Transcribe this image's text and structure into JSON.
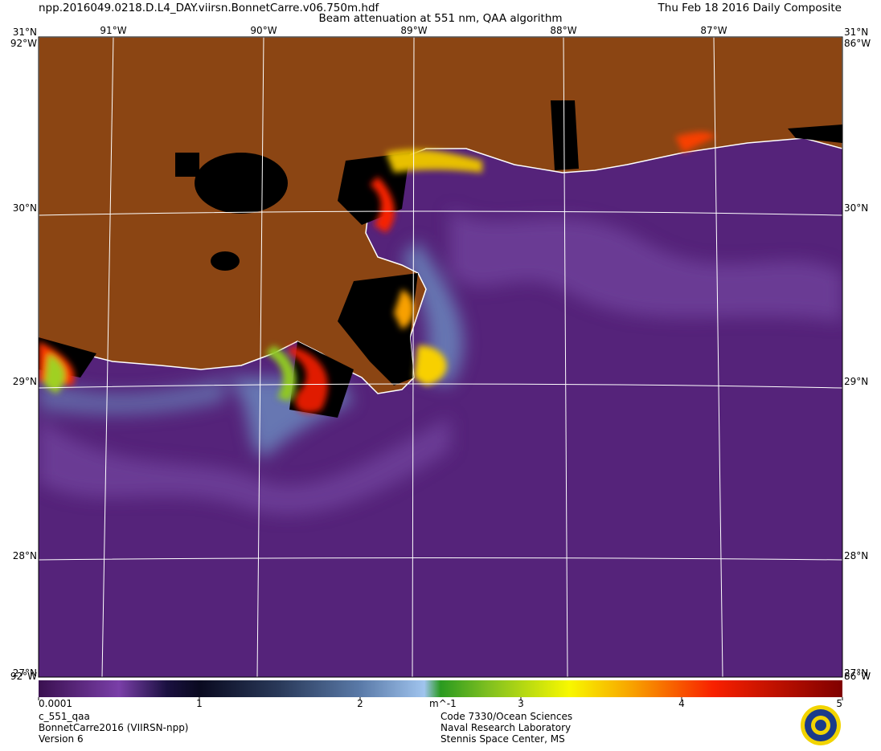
{
  "header": {
    "file": "npp.2016049.0218.D.L4_DAY.viirsn.BonnetCarre.v06.750m.hdf",
    "title": "Beam attenuation at 551 nm, QAA algorithm",
    "date": "Thu Feb 18 2016 Daily Composite"
  },
  "map": {
    "lon_labels": [
      "91°W",
      "90°W",
      "89°W",
      "88°W",
      "87°W"
    ],
    "lat_labels": [
      "30°N",
      "29°N",
      "28°N"
    ],
    "corner_labels": {
      "top_left": [
        "31°N",
        "92°W"
      ],
      "top_right": [
        "31°N",
        "86°W"
      ],
      "bottom_left": [
        "27°N",
        "92°W"
      ],
      "bottom_right": [
        "27°N",
        "86°W"
      ]
    }
  },
  "colorbar": {
    "lim": [
      0.0001,
      5
    ],
    "ticks": [
      0.0001,
      1,
      2,
      3,
      4,
      5
    ],
    "unit": "m^-1"
  },
  "footer": {
    "left": [
      "c_551_qaa",
      "BonnetCarre2016 (VIIRSN-npp)",
      "Version 6"
    ],
    "right": [
      "Code 7330/Ocean Sciences",
      "Naval Research Laboratory",
      "Stennis Space Center, MS"
    ]
  }
}
